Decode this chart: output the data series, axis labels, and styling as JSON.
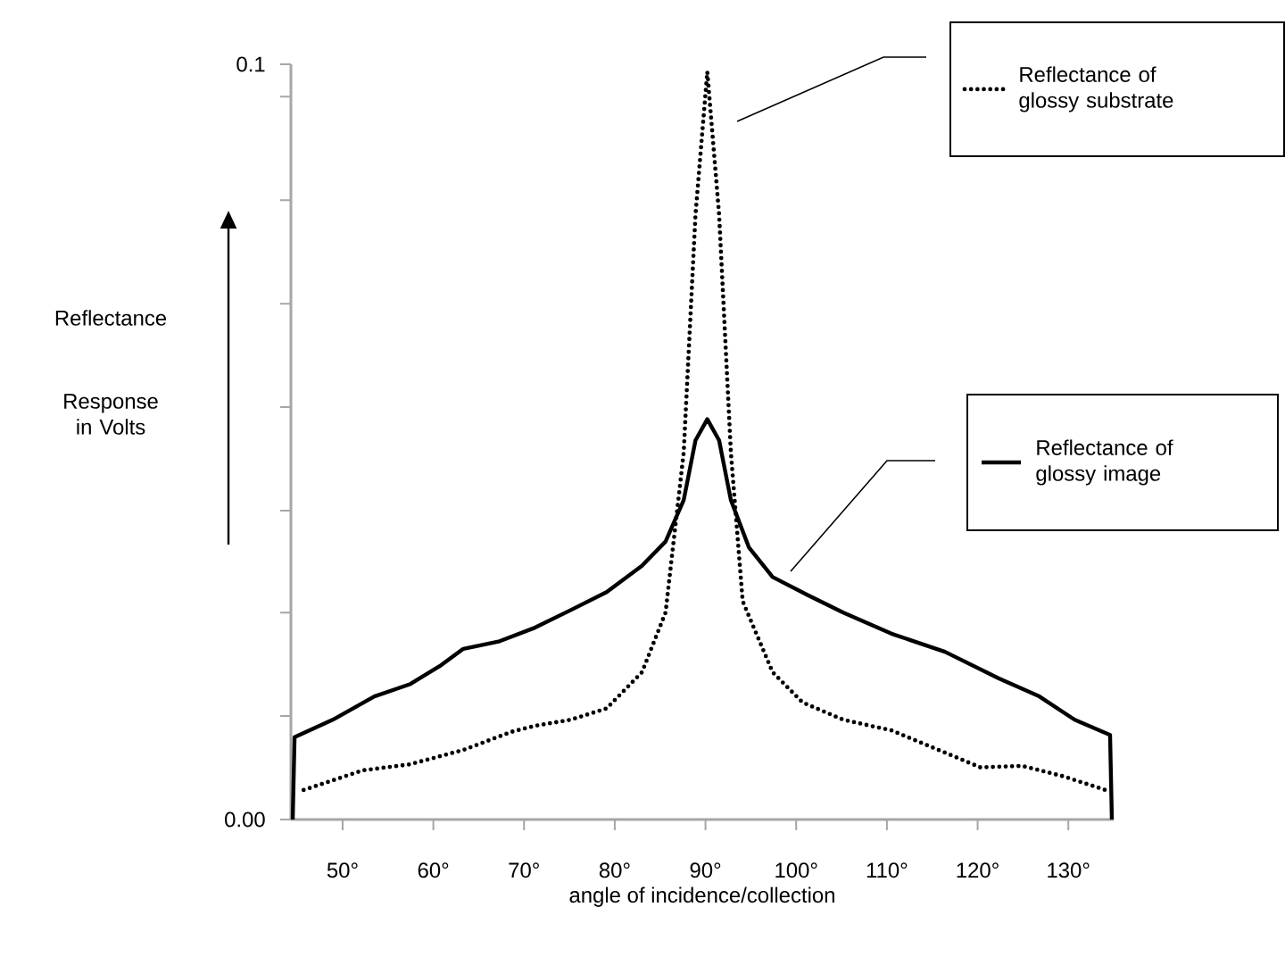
{
  "chart_data": {
    "type": "line",
    "xlabel": "angle of incidence/collection",
    "ylabel": "Reflectance",
    "annotations": [
      "Response in Volts"
    ],
    "xlim": [
      44.3,
      135
    ],
    "ylim": [
      0,
      0.1
    ],
    "xticks": [
      {
        "value": 50,
        "label": "50°"
      },
      {
        "value": 60,
        "label": "60°"
      },
      {
        "value": 70,
        "label": "70°"
      },
      {
        "value": 80,
        "label": "80°"
      },
      {
        "value": 90,
        "label": "90°"
      },
      {
        "value": 100,
        "label": "100°"
      },
      {
        "value": 110,
        "label": "110°"
      },
      {
        "value": 120,
        "label": "120°"
      },
      {
        "value": 130,
        "label": "130°"
      }
    ],
    "yticks": [
      {
        "value": 0,
        "label": "0.00"
      },
      {
        "value": 0.0137,
        "label": null
      },
      {
        "value": 0.0274,
        "label": null
      },
      {
        "value": 0.0409,
        "label": null
      },
      {
        "value": 0.0546,
        "label": null
      },
      {
        "value": 0.0683,
        "label": null
      },
      {
        "value": 0.082,
        "label": null
      },
      {
        "value": 0.0957,
        "label": null
      },
      {
        "value": 0.1,
        "label": "0.1"
      }
    ],
    "legend": "right",
    "series": [
      {
        "name": "Reflectance of glossy substrate",
        "color": "#000000",
        "line_style": "dotted",
        "x": [
          45.7,
          52.2,
          57.4,
          63.3,
          68.6,
          71.2,
          75.1,
          79.1,
          83.0,
          85.6,
          87.6,
          88.9,
          90.2,
          91.5,
          92.8,
          94.1,
          97.4,
          100.7,
          105.2,
          110.5,
          120.3,
          124.9,
          129.5,
          134.1
        ],
        "values": [
          0.0039,
          0.0065,
          0.0073,
          0.0092,
          0.0116,
          0.0124,
          0.0132,
          0.0147,
          0.0195,
          0.0274,
          0.0486,
          0.0801,
          0.099,
          0.0801,
          0.0486,
          0.0289,
          0.0195,
          0.0155,
          0.0132,
          0.0118,
          0.0069,
          0.0071,
          0.0057,
          0.0039
        ]
      },
      {
        "name": "Reflectance of glossy image",
        "color": "#000000",
        "line_style": "solid",
        "x": [
          44.5,
          44.7,
          48.9,
          53.5,
          57.4,
          60.7,
          63.3,
          67.3,
          71.2,
          75.1,
          79.1,
          83.0,
          85.6,
          87.6,
          88.9,
          90.2,
          91.5,
          92.8,
          94.8,
          97.4,
          101.3,
          105.2,
          110.5,
          116.4,
          122.3,
          126.8,
          130.7,
          134.6,
          134.8
        ],
        "values": [
          0,
          0.0109,
          0.0132,
          0.0163,
          0.0179,
          0.0203,
          0.0226,
          0.0236,
          0.0254,
          0.0277,
          0.0301,
          0.0336,
          0.0368,
          0.0423,
          0.0502,
          0.053,
          0.0502,
          0.0423,
          0.036,
          0.0321,
          0.0297,
          0.0274,
          0.0246,
          0.0222,
          0.0187,
          0.0163,
          0.0132,
          0.0112,
          0
        ]
      }
    ]
  }
}
